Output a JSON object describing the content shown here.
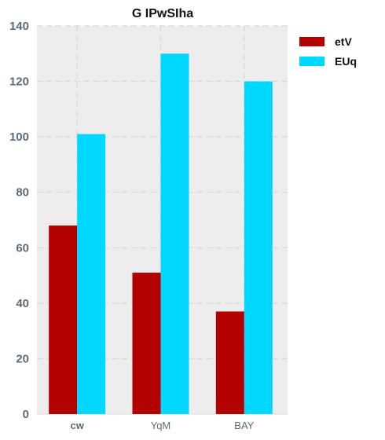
{
  "chart_data": {
    "type": "bar",
    "title": "G IPwSIha",
    "categories": [
      "cw",
      "YqM",
      "BAY"
    ],
    "series": [
      {
        "name": "etV",
        "values": [
          68,
          51,
          37
        ],
        "color": "#b30000"
      },
      {
        "name": "EUq",
        "values": [
          101,
          130,
          120
        ],
        "color": "#00d8ff"
      }
    ],
    "xlabel": "",
    "ylabel": "",
    "ylim": [
      0,
      140
    ],
    "yticks": [
      0,
      20,
      40,
      60,
      80,
      100,
      120,
      140
    ],
    "grid": true,
    "legend_position": "top-right",
    "background_color": "#ededed"
  }
}
